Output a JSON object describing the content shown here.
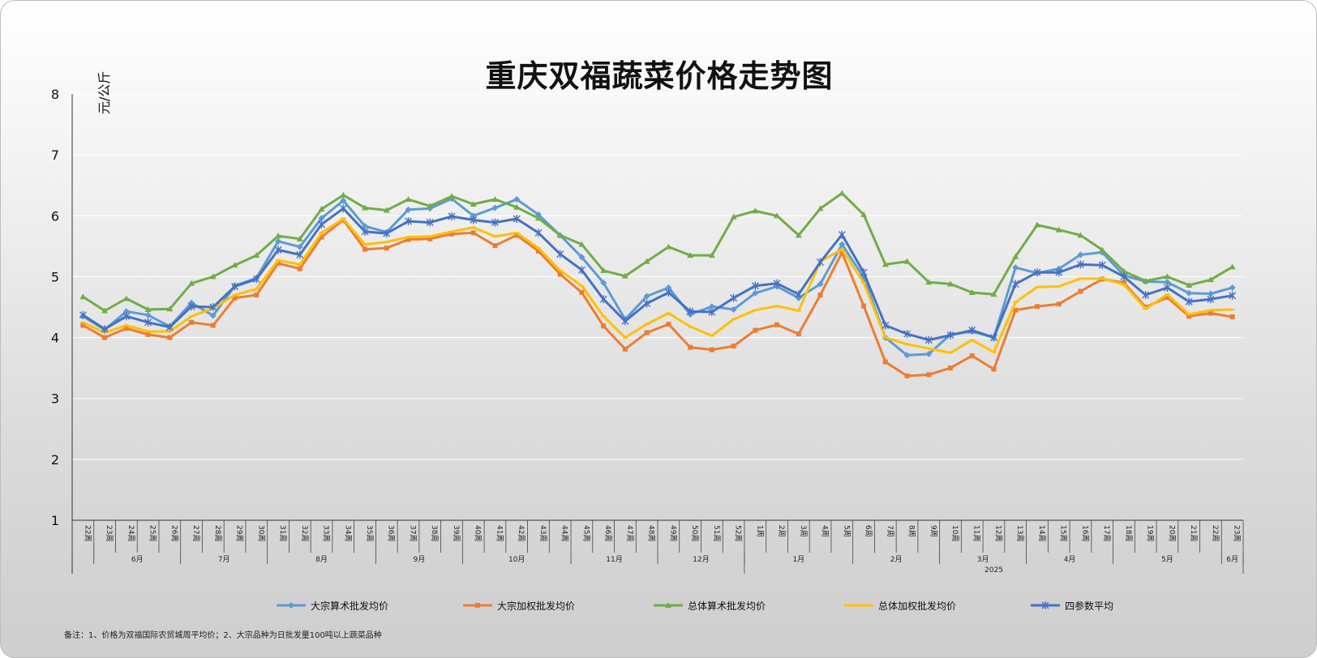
{
  "chart_data": {
    "type": "line",
    "title": "重庆双福蔬菜价格走势图",
    "ylabel": "元/公斤",
    "ylim": [
      1,
      8
    ],
    "yticks": [
      1,
      2,
      3,
      4,
      5,
      6,
      7,
      8
    ],
    "grid": true,
    "legend_position": "bottom",
    "categories": [
      "22周",
      "23周",
      "24周",
      "25周",
      "26周",
      "27周",
      "28周",
      "29周",
      "30周",
      "31周",
      "32周",
      "33周",
      "34周",
      "35周",
      "36周",
      "37周",
      "38周",
      "39周",
      "40周",
      "41周",
      "42周",
      "43周",
      "44周",
      "45周",
      "46周",
      "47周",
      "48周",
      "49周",
      "50周",
      "51周",
      "52周",
      "1周",
      "2周",
      "3周",
      "4周",
      "5周",
      "6周",
      "7周",
      "8周",
      "9周",
      "10周",
      "11周",
      "12周",
      "13周",
      "14周",
      "15周",
      "16周",
      "17周",
      "18周",
      "19周",
      "20周",
      "21周",
      "22周",
      "23周"
    ],
    "month_groups": [
      {
        "label": "6月",
        "start": 1,
        "end": 4
      },
      {
        "label": "7月",
        "start": 5,
        "end": 8
      },
      {
        "label": "8月",
        "start": 9,
        "end": 13
      },
      {
        "label": "9月",
        "start": 14,
        "end": 17
      },
      {
        "label": "10月",
        "start": 18,
        "end": 22
      },
      {
        "label": "11月",
        "start": 23,
        "end": 26
      },
      {
        "label": "12月",
        "start": 27,
        "end": 30
      },
      {
        "label": "1月",
        "start": 31,
        "end": 35
      },
      {
        "label": "2月",
        "start": 36,
        "end": 39
      },
      {
        "label": "3月",
        "start": 40,
        "end": 43
      },
      {
        "label": "4月",
        "start": 44,
        "end": 47
      },
      {
        "label": "5月",
        "start": 48,
        "end": 52
      },
      {
        "label": "6月",
        "start": 53,
        "end": 53
      }
    ],
    "year_groups": [
      {
        "label": "2025",
        "start": 31,
        "end": 53
      }
    ],
    "series": [
      {
        "name": "大宗算术批发均价",
        "color": "#5b9bd5",
        "marker": "diamond",
        "values": [
          4.35,
          4.13,
          4.43,
          4.37,
          4.18,
          4.57,
          4.36,
          4.85,
          4.98,
          5.58,
          5.49,
          5.96,
          6.25,
          5.83,
          5.73,
          6.1,
          6.12,
          6.28,
          6.0,
          6.13,
          6.27,
          6.02,
          5.68,
          5.32,
          4.9,
          4.3,
          4.68,
          4.82,
          4.38,
          4.51,
          4.46,
          4.73,
          4.84,
          4.65,
          4.88,
          5.53,
          4.99,
          4.0,
          3.71,
          3.73,
          4.05,
          4.1,
          4.0,
          5.15,
          5.06,
          5.13,
          5.36,
          5.4,
          5.02,
          4.92,
          4.91,
          4.73,
          4.72,
          4.82
        ]
      },
      {
        "name": "大宗加权批发均价",
        "color": "#ed7d31",
        "marker": "square",
        "values": [
          4.2,
          4.0,
          4.15,
          4.05,
          4.0,
          4.25,
          4.2,
          4.65,
          4.7,
          5.22,
          5.13,
          5.65,
          5.93,
          5.45,
          5.47,
          5.61,
          5.62,
          5.7,
          5.72,
          5.51,
          5.68,
          5.42,
          5.04,
          4.74,
          4.19,
          3.81,
          4.08,
          4.22,
          3.84,
          3.8,
          3.86,
          4.12,
          4.21,
          4.06,
          4.7,
          5.4,
          4.52,
          3.6,
          3.37,
          3.39,
          3.5,
          3.7,
          3.48,
          4.45,
          4.51,
          4.55,
          4.76,
          4.96,
          4.9,
          4.5,
          4.66,
          4.35,
          4.4,
          4.34
        ]
      },
      {
        "name": "总体算术批发均价",
        "color": "#70ad47",
        "marker": "triangle",
        "values": [
          4.67,
          4.44,
          4.64,
          4.46,
          4.47,
          4.89,
          5.0,
          5.19,
          5.35,
          5.67,
          5.62,
          6.11,
          6.34,
          6.13,
          6.09,
          6.27,
          6.16,
          6.32,
          6.19,
          6.27,
          6.14,
          5.96,
          5.68,
          5.53,
          5.1,
          5.01,
          5.25,
          5.49,
          5.35,
          5.35,
          5.98,
          6.08,
          6.0,
          5.68,
          6.12,
          6.37,
          6.02,
          5.2,
          5.25,
          4.91,
          4.88,
          4.74,
          4.71,
          5.33,
          5.85,
          5.77,
          5.68,
          5.44,
          5.09,
          4.93,
          5.0,
          4.86,
          4.95,
          5.16
        ]
      },
      {
        "name": "总体加权批发均价",
        "color": "#ffc000",
        "marker": "line",
        "values": [
          4.25,
          4.08,
          4.2,
          4.1,
          4.1,
          4.35,
          4.48,
          4.7,
          4.8,
          5.27,
          5.2,
          5.72,
          5.95,
          5.53,
          5.57,
          5.65,
          5.66,
          5.74,
          5.81,
          5.66,
          5.72,
          5.47,
          5.1,
          4.85,
          4.35,
          4.0,
          4.22,
          4.4,
          4.18,
          4.03,
          4.3,
          4.45,
          4.52,
          4.44,
          5.25,
          5.45,
          4.9,
          4.0,
          3.89,
          3.82,
          3.75,
          3.96,
          3.76,
          4.58,
          4.83,
          4.84,
          4.97,
          4.97,
          4.87,
          4.47,
          4.71,
          4.38,
          4.45,
          4.46
        ]
      },
      {
        "name": "四参数平均",
        "color": "#4472c4",
        "marker": "star",
        "values": [
          4.37,
          4.14,
          4.35,
          4.25,
          4.17,
          4.51,
          4.5,
          4.84,
          4.96,
          5.44,
          5.36,
          5.86,
          6.12,
          5.74,
          5.71,
          5.91,
          5.89,
          5.99,
          5.93,
          5.89,
          5.95,
          5.72,
          5.37,
          5.11,
          4.63,
          4.27,
          4.56,
          4.74,
          4.43,
          4.42,
          4.65,
          4.85,
          4.89,
          4.71,
          5.24,
          5.69,
          5.07,
          4.2,
          4.06,
          3.96,
          4.04,
          4.12,
          4.0,
          4.88,
          5.07,
          5.07,
          5.2,
          5.19,
          5.0,
          4.7,
          4.82,
          4.59,
          4.63,
          4.69
        ]
      }
    ]
  },
  "footnote": "备注：1、价格为双福国际农贸城周平均价；2、大宗品种为日批发量100吨以上蔬菜品种"
}
